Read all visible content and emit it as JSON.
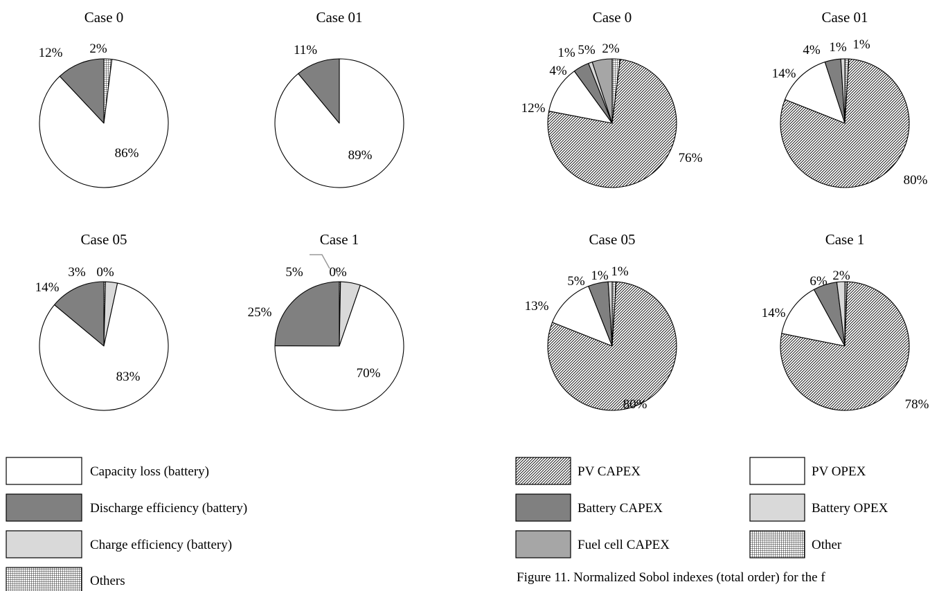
{
  "chart_data": [
    {
      "type": "pie",
      "group": "left",
      "title": "Case 0",
      "slices": [
        {
          "label": "Capacity loss (battery)",
          "value": 86,
          "text": "86%"
        },
        {
          "label": "Discharge efficiency (battery)",
          "value": 12,
          "text": "12%"
        },
        {
          "label": "Others",
          "value": 2,
          "text": "2%"
        }
      ]
    },
    {
      "type": "pie",
      "group": "left",
      "title": "Case 01",
      "slices": [
        {
          "label": "Capacity loss (battery)",
          "value": 89,
          "text": "89%"
        },
        {
          "label": "Discharge efficiency (battery)",
          "value": 11,
          "text": "11%"
        }
      ]
    },
    {
      "type": "pie",
      "group": "left",
      "title": "Case 05",
      "slices": [
        {
          "label": "Capacity loss (battery)",
          "value": 83,
          "text": "83%"
        },
        {
          "label": "Discharge efficiency (battery)",
          "value": 14,
          "text": "14%"
        },
        {
          "label": "Charge efficiency (battery)",
          "value": 3,
          "text": "3%"
        },
        {
          "label": "Others",
          "value": 0.4,
          "text": "0%"
        }
      ]
    },
    {
      "type": "pie",
      "group": "left",
      "title": "Case 1",
      "slices": [
        {
          "label": "Capacity loss (battery)",
          "value": 70,
          "text": "70%"
        },
        {
          "label": "Discharge efficiency (battery)",
          "value": 25,
          "text": "25%"
        },
        {
          "label": "Charge efficiency (battery)",
          "value": 5,
          "text": "5%"
        },
        {
          "label": "Others",
          "value": 0.3,
          "text": "0%"
        }
      ]
    },
    {
      "type": "pie",
      "group": "right",
      "title": "Case 0",
      "slices": [
        {
          "label": "PV CAPEX",
          "value": 76,
          "text": "76%"
        },
        {
          "label": "PV OPEX",
          "value": 12,
          "text": "12%"
        },
        {
          "label": "Battery CAPEX",
          "value": 4,
          "text": "4%"
        },
        {
          "label": "Battery OPEX",
          "value": 1,
          "text": "1%"
        },
        {
          "label": "Fuel cell CAPEX",
          "value": 5,
          "text": "5%"
        },
        {
          "label": "Other",
          "value": 2,
          "text": "2%"
        }
      ]
    },
    {
      "type": "pie",
      "group": "right",
      "title": "Case 01",
      "slices": [
        {
          "label": "PV CAPEX",
          "value": 80,
          "text": "80%"
        },
        {
          "label": "PV OPEX",
          "value": 14,
          "text": "14%"
        },
        {
          "label": "Battery CAPEX",
          "value": 4,
          "text": "4%"
        },
        {
          "label": "Battery OPEX",
          "value": 1,
          "text": "1%"
        },
        {
          "label": "Other",
          "value": 1,
          "text": "1%"
        }
      ]
    },
    {
      "type": "pie",
      "group": "right",
      "title": "Case 05",
      "slices": [
        {
          "label": "PV CAPEX",
          "value": 80,
          "text": "80%"
        },
        {
          "label": "PV OPEX",
          "value": 13,
          "text": "13%"
        },
        {
          "label": "Battery CAPEX",
          "value": 5,
          "text": "5%"
        },
        {
          "label": "Battery OPEX",
          "value": 1,
          "text": "1%"
        },
        {
          "label": "Other",
          "value": 1,
          "text": "1%"
        }
      ]
    },
    {
      "type": "pie",
      "group": "right",
      "title": "Case 1",
      "slices": [
        {
          "label": "PV CAPEX",
          "value": 78,
          "text": "78%"
        },
        {
          "label": "PV OPEX",
          "value": 14,
          "text": "14%"
        },
        {
          "label": "Battery CAPEX",
          "value": 6,
          "text": "6%"
        },
        {
          "label": "Battery OPEX",
          "value": 2,
          "text": "2%"
        },
        {
          "label": "Other",
          "value": 0.6,
          "text": ""
        }
      ]
    }
  ],
  "legend_left": [
    {
      "label": "Capacity loss (battery)",
      "pattern": "white"
    },
    {
      "label": "Discharge efficiency (battery)",
      "pattern": "darkgray"
    },
    {
      "label": "Charge efficiency (battery)",
      "pattern": "lightgray"
    },
    {
      "label": "Others",
      "pattern": "grid"
    }
  ],
  "legend_right": [
    {
      "label": "PV CAPEX",
      "pattern": "diagonal"
    },
    {
      "label": "PV OPEX",
      "pattern": "white"
    },
    {
      "label": "Battery CAPEX",
      "pattern": "darkgray"
    },
    {
      "label": "Battery OPEX",
      "pattern": "lightgray"
    },
    {
      "label": "Fuel cell CAPEX",
      "pattern": "midgray"
    },
    {
      "label": "Other",
      "pattern": "grid"
    }
  ],
  "caption": "Figure 11. Normalized Sobol indexes (total order) for the f",
  "colors": {
    "white": "#ffffff",
    "darkgray": "#808080",
    "lightgray": "#d9d9d9",
    "midgray": "#a6a6a6",
    "stroke": "#000000"
  }
}
